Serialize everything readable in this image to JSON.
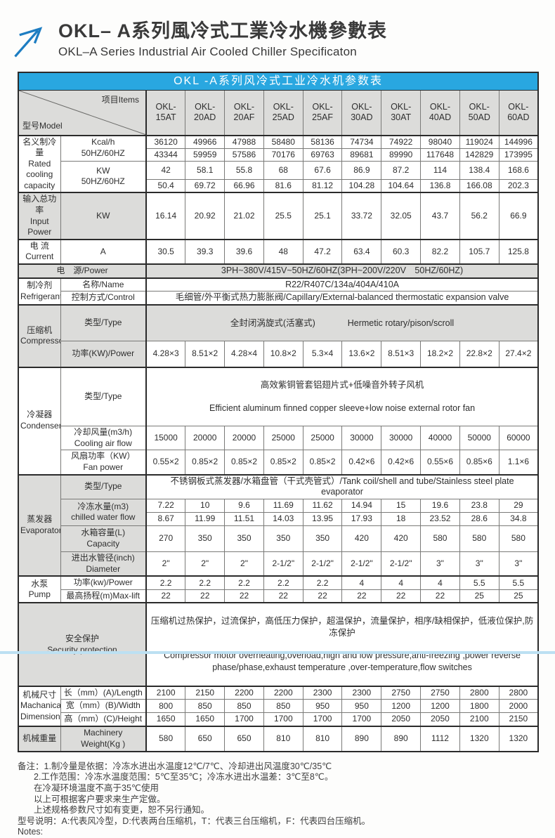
{
  "header": {
    "title_cn": "OKL– A系列風冷式工業冷水機參數表",
    "title_en": "OKL–A Series Industrial Air Cooled Chiller Specificaton"
  },
  "table": {
    "title": "OKL -A系列风冷式工业冷水机参数表",
    "corner": {
      "model": "型号Model",
      "items": "项目Items"
    },
    "models": [
      "OKL-\n15AT",
      "OKL-\n20AD",
      "OKL-\n20AF",
      "OKL-\n25AD",
      "OKL-\n25AF",
      "OKL-\n30AD",
      "OKL-\n30AT",
      "OKL-\n40AD",
      "OKL-\n50AD",
      "OKL-\n60AD"
    ],
    "labels": {
      "rated": "名义制冷量\nRated\ncooling\ncapacity",
      "kcal_unit": "Kcal/h\n50HZ/60HZ",
      "kw_unit": "KW\n50HZ/60HZ",
      "input_power": "输入总功率\nInput Power",
      "input_power_unit": "KW",
      "current": "电 流\nCurrent",
      "current_unit": "A",
      "power_supply": "电　源/Power",
      "refrigerant": "制冷剂\nRefrigerant",
      "refrigerant_name": "名称/Name",
      "refrigerant_control": "控制方式/Control",
      "compressor": "压缩机\nCompressor",
      "type": "类型/Type",
      "compressor_power": "功率(KW)/Power",
      "condenser": "冷凝器\nCondenser",
      "air_flow": "冷却风量(m3/h)\nCooling air flow",
      "fan_power": "风扇功率（KW）\nFan power",
      "evaporator": "蒸发器\nEvaporator",
      "chilled_water": "冷冻水量(m3)\nchilled water flow",
      "tank_capacity": "水箱容量(L)\nCapacity",
      "pipe_diameter": "进出水管径(inch)\nDiameter",
      "pump": "水泵\nPump",
      "pump_power": "功率(kw)/Power",
      "max_lift": "最高扬程(m)Max-lift",
      "security": "安全保护\nSecurity protection",
      "dimensions": "机械尺寸\nMachanical\nDimensions",
      "length": "长（mm）(A)/Length",
      "width": "宽（mm）(B)/Width",
      "height": "高（mm）(C)/Height",
      "weight_cn": "机械重量",
      "weight_en": "Machinery\nWeight(Kg )"
    },
    "values": {
      "kcal_50": [
        "36120",
        "49966",
        "47988",
        "58480",
        "58136",
        "74734",
        "74922",
        "98040",
        "119024",
        "144996"
      ],
      "kcal_60": [
        "43344",
        "59959",
        "57586",
        "70176",
        "69763",
        "89681",
        "89990",
        "117648",
        "142829",
        "173995"
      ],
      "kw_50": [
        "42",
        "58.1",
        "55.8",
        "68",
        "67.6",
        "86.9",
        "87.2",
        "114",
        "138.4",
        "168.6"
      ],
      "kw_60": [
        "50.4",
        "69.72",
        "66.96",
        "81.6",
        "81.12",
        "104.28",
        "104.64",
        "136.8",
        "166.08",
        "202.3"
      ],
      "input_power": [
        "16.14",
        "20.92",
        "21.02",
        "25.5",
        "25.1",
        "33.72",
        "32.05",
        "43.7",
        "56.2",
        "66.9"
      ],
      "current": [
        "30.5",
        "39.3",
        "39.6",
        "48",
        "47.2",
        "63.4",
        "60.3",
        "82.2",
        "105.7",
        "125.8"
      ],
      "power_supply": "3PH~380V/415V~50HZ/60HZ(3PH~200V/220V　50HZ/60HZ)",
      "refrigerant_name": "R22/R407C/134a/404A/410A",
      "refrigerant_control": "毛细管/外平衡式热力膨胀阀/Capillary/External-balanced thermostatic expansion valve",
      "compressor_type_cn": "全封闭涡旋式(活塞式)",
      "compressor_type_en": "Hermetic rotary/pison/scroll",
      "compressor_power": [
        "4.28×3",
        "8.51×2",
        "4.28×4",
        "10.8×2",
        "5.3×4",
        "13.6×2",
        "8.51×3",
        "18.2×2",
        "22.8×2",
        "27.4×2"
      ],
      "condenser_type_cn": "高效紫铜管套铝翅片式+低噪音外转子风机",
      "condenser_type_en": "Efficient aluminum finned copper sleeve+low noise external rotor fan",
      "air_flow": [
        "15000",
        "20000",
        "20000",
        "25000",
        "25000",
        "30000",
        "30000",
        "40000",
        "50000",
        "60000"
      ],
      "fan_power": [
        "0.55×2",
        "0.85×2",
        "0.85×2",
        "0.85×2",
        "0.85×2",
        "0.42×6",
        "0.42×6",
        "0.55×6",
        "0.85×6",
        "1.1×6"
      ],
      "evaporator_type": "不锈钢板式蒸发器/水箱盘管（干式壳管式）/Tank coil/shell and tube/Stainless steel plate evaporator",
      "chilled_water_50": [
        "7.22",
        "10",
        "9.6",
        "11.69",
        "11.62",
        "14.94",
        "15",
        "19.6",
        "23.8",
        "29"
      ],
      "chilled_water_60": [
        "8.67",
        "11.99",
        "11.51",
        "14.03",
        "13.95",
        "17.93",
        "18",
        "23.52",
        "28.6",
        "34.8"
      ],
      "tank_capacity": [
        "270",
        "350",
        "350",
        "350",
        "350",
        "420",
        "420",
        "580",
        "580",
        "580"
      ],
      "pipe_diameter": [
        "2\"",
        "2\"",
        "2\"",
        "2-1/2\"",
        "2-1/2\"",
        "2-1/2\"",
        "2-1/2\"",
        "3\"",
        "3\"",
        "3\""
      ],
      "pump_power": [
        "2.2",
        "2.2",
        "2.2",
        "2.2",
        "2.2",
        "4",
        "4",
        "4",
        "5.5",
        "5.5"
      ],
      "max_lift": [
        "22",
        "22",
        "22",
        "22",
        "22",
        "22",
        "22",
        "22",
        "25",
        "25"
      ],
      "security_cn": "压缩机过热保护，过流保护，高低压力保护，超温保护，流量保护，相序/缺相保护，低液位保护,防冻保护",
      "security_en": "Compressor motor overheating,overload,high and low pressure,anti-freezing ,power reverse phase/phase,exhaust temperature ,over-temperature,flow switches",
      "length": [
        "2100",
        "2150",
        "2200",
        "2200",
        "2300",
        "2300",
        "2750",
        "2750",
        "2800",
        "2800"
      ],
      "width": [
        "800",
        "850",
        "850",
        "850",
        "950",
        "950",
        "1200",
        "1200",
        "1800",
        "2000"
      ],
      "height": [
        "1650",
        "1650",
        "1700",
        "1700",
        "1700",
        "1700",
        "2050",
        "2050",
        "2100",
        "2150"
      ],
      "weight": [
        "580",
        "650",
        "650",
        "810",
        "810",
        "890",
        "890",
        "1112",
        "1320",
        "1320"
      ]
    }
  },
  "notes": {
    "lines": [
      "备注：1.制冷量是依据：冷冻水进出水温度12℃/7℃、冷却进出风温度30℃/35℃",
      "2.工作范围：冷冻水温度范围：5℃至35℃；冷冻水进出水温差：3℃至8℃。",
      "在冷凝环境温度不高于35℃使用",
      "以上可根据客户要求来生产定做。",
      "上述规格参数尺寸如有变更，恕不另行通知。",
      "型号说明：A:代表风冷型，D:代表两台压缩机，T：代表三台压缩机，F：代表四台压缩机。",
      "Notes:"
    ]
  },
  "colors": {
    "accent_blue": "#29a7e0",
    "arrow_blue": "#1d7dc2",
    "cell_gray": "#dcdcda",
    "bottom_strip": "#bce0f2"
  }
}
